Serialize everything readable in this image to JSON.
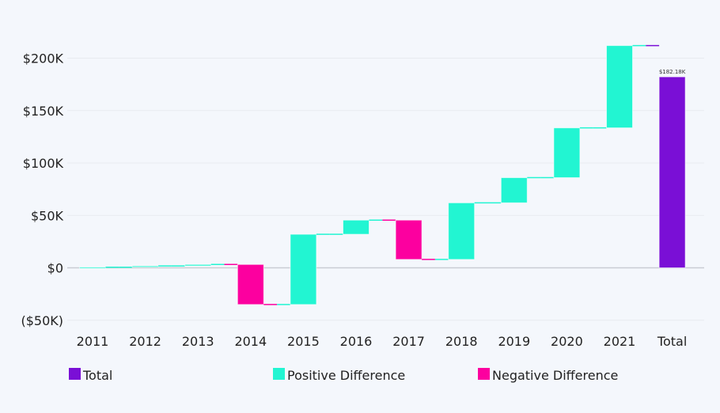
{
  "chart_data": {
    "type": "waterfall",
    "title": "",
    "categories": [
      "2011",
      "2012",
      "2013",
      "2014",
      "2015",
      "2016",
      "2017",
      "2018",
      "2019",
      "2020",
      "2021",
      "Total"
    ],
    "cumulative_values_k": [
      0.6,
      1.8,
      3.2,
      -35,
      32,
      45.5,
      8,
      62,
      86,
      133.5,
      212,
      182.18
    ],
    "total_value_k": 182.18,
    "total_label": "$182.18K",
    "y_ticks": [
      -50,
      0,
      50,
      100,
      150,
      200
    ],
    "y_tick_labels": [
      "($50K)",
      "$0",
      "$50K",
      "$100K",
      "$150K",
      "$200K"
    ],
    "ylim_k": [
      -55,
      215
    ],
    "grid": true,
    "legend_position": "bottom",
    "legend": [
      {
        "label": "Total",
        "color": "#7a0fd6"
      },
      {
        "label": "Positive Difference",
        "color": "#22f5d2"
      },
      {
        "label": "Negative Difference",
        "color": "#fc009f"
      }
    ]
  }
}
